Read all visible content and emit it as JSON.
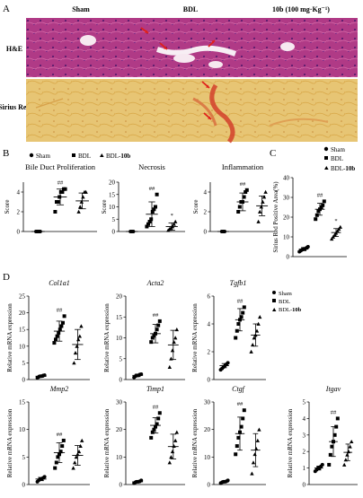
{
  "panel_labels": [
    "A",
    "B",
    "C",
    "D"
  ],
  "histology": {
    "columns": [
      "Sham",
      "BDL",
      "10b (100 mg·Kg⁻¹)"
    ],
    "rows": [
      "H&E",
      "Sirius Red"
    ]
  },
  "legend_labels": [
    "Sham",
    "BDL",
    "BDL-10b"
  ],
  "legend_bdl10b_parts": [
    "BDL-",
    "10b"
  ],
  "colors": {
    "he_fill": "#b03a86",
    "sirius_fill": "#e7c574",
    "arrow": "#e0201a",
    "ink": "#000000"
  },
  "chart_data": [
    {
      "type": "scatter",
      "title": "Bile Duct Proliferation",
      "ylabel": "Score",
      "ylim": [
        0,
        5
      ],
      "yticks": [
        0,
        2,
        4
      ],
      "annotation": "##",
      "annotation_group": 1,
      "groups": [
        "Sham",
        "BDL",
        "BDL-10b"
      ],
      "points": [
        [
          0,
          0,
          0,
          0
        ],
        [
          2,
          3,
          3,
          3.5,
          4,
          4,
          4.3,
          4.3
        ],
        [
          2,
          2.5,
          3,
          3.5,
          4,
          4
        ]
      ],
      "mean": [
        0,
        3.5,
        3.1
      ],
      "sd": [
        0,
        0.8,
        0.8
      ]
    },
    {
      "type": "scatter",
      "title": "Necrosis",
      "ylabel": "Score",
      "ylim": [
        0,
        20
      ],
      "yticks": [
        0,
        5,
        10,
        15,
        20
      ],
      "annotation": "##",
      "annotation_group": 1,
      "annotation2": "*",
      "annotation2_group": 2,
      "groups": [
        "Sham",
        "BDL",
        "BDL-10b"
      ],
      "points": [
        [
          0,
          0,
          0
        ],
        [
          2,
          3,
          4,
          5,
          8,
          9,
          10,
          15
        ],
        [
          0.5,
          1,
          1.5,
          2,
          3,
          4
        ]
      ],
      "mean": [
        0,
        7,
        2
      ],
      "sd": [
        0,
        5,
        1.5
      ]
    },
    {
      "type": "scatter",
      "title": "Inflammation",
      "ylabel": "Score",
      "ylim": [
        0,
        5
      ],
      "yticks": [
        0,
        2,
        4
      ],
      "annotation": "##",
      "annotation_group": 1,
      "groups": [
        "Sham",
        "BDL",
        "BDL-10b"
      ],
      "points": [
        [
          0,
          0,
          0
        ],
        [
          2,
          2.5,
          3,
          3,
          3.5,
          4,
          4.2
        ],
        [
          1,
          2,
          2.5,
          3,
          3.5,
          4
        ]
      ],
      "mean": [
        0,
        3,
        2.6
      ],
      "sd": [
        0,
        0.9,
        1.0
      ]
    },
    {
      "type": "scatter",
      "title": "",
      "ylabel": "Sirius Red Positive Area(%)",
      "ylim": [
        0,
        40
      ],
      "yticks": [
        0,
        10,
        20,
        30,
        40
      ],
      "annotation": "##",
      "annotation_group": 1,
      "annotation2": "*",
      "annotation2_group": 2,
      "groups": [
        "Sham",
        "BDL",
        "BDL-10b"
      ],
      "points": [
        [
          2.5,
          3,
          3.5,
          4,
          4,
          4.5,
          5
        ],
        [
          19,
          21,
          23,
          24,
          25,
          26,
          28
        ],
        [
          9,
          10,
          11,
          12,
          13,
          14,
          15
        ]
      ],
      "mean": [
        3.8,
        24,
        12.2
      ],
      "sd": [
        0.8,
        3,
        2
      ]
    },
    {
      "type": "scatter",
      "title": "Col1a1",
      "ylabel": "Relative mRNA expression",
      "ylim": [
        0,
        25
      ],
      "yticks": [
        0,
        5,
        10,
        15,
        20,
        25
      ],
      "annotation": "##",
      "annotation_group": 1,
      "groups": [
        "Sham",
        "BDL",
        "BDL-10b"
      ],
      "points": [
        [
          0.5,
          0.8,
          1,
          1,
          1.2,
          1.3
        ],
        [
          11,
          12,
          13,
          14,
          15,
          16,
          17,
          19
        ],
        [
          5,
          8,
          10,
          12,
          13,
          16
        ]
      ],
      "mean": [
        1,
        14.5,
        10.5
      ],
      "sd": [
        0.3,
        3,
        4.5
      ]
    },
    {
      "type": "scatter",
      "title": "Acta2",
      "ylabel": "Relative mRNA expression",
      "ylim": [
        0,
        20
      ],
      "yticks": [
        0,
        5,
        10,
        15,
        20
      ],
      "annotation": "##",
      "annotation_group": 1,
      "groups": [
        "Sham",
        "BDL",
        "BDL-10b"
      ],
      "points": [
        [
          0.5,
          0.8,
          1,
          1,
          1.2,
          1.3
        ],
        [
          9,
          10,
          10.5,
          11,
          12,
          13,
          14
        ],
        [
          3,
          5,
          7,
          9,
          10,
          12
        ]
      ],
      "mean": [
        1,
        11,
        8.3
      ],
      "sd": [
        0.3,
        2.2,
        3.5
      ]
    },
    {
      "type": "scatter",
      "title": "Tgfb1",
      "ylabel": "Relative mRNA expression",
      "ylim": [
        0,
        6
      ],
      "yticks": [
        0,
        2,
        4,
        6
      ],
      "annotation": "##",
      "annotation_group": 1,
      "groups": [
        "Sham",
        "BDL",
        "BDL-10b"
      ],
      "points": [
        [
          0.7,
          0.8,
          0.9,
          1,
          1.1,
          1.2
        ],
        [
          3,
          3.5,
          4,
          4.3,
          4.5,
          4.8,
          5.2
        ],
        [
          2,
          2.5,
          3,
          3.2,
          3.5,
          4,
          4.5
        ]
      ],
      "mean": [
        1,
        4.3,
        3.2
      ],
      "sd": [
        0.15,
        0.8,
        0.8
      ]
    },
    {
      "type": "scatter",
      "title": "Mmp2",
      "ylabel": "Relative mRNA expression",
      "ylim": [
        0,
        15
      ],
      "yticks": [
        0,
        5,
        10,
        15
      ],
      "annotation": "##",
      "annotation_group": 1,
      "groups": [
        "Sham",
        "BDL",
        "BDL-10b"
      ],
      "points": [
        [
          0.5,
          0.8,
          1,
          1,
          1.2,
          1.4
        ],
        [
          3,
          4,
          5,
          5.5,
          6,
          7,
          8
        ],
        [
          3,
          4,
          5,
          5.5,
          6,
          7,
          8
        ]
      ],
      "mean": [
        1,
        5.8,
        5.3
      ],
      "sd": [
        0.3,
        1.8,
        1.8
      ]
    },
    {
      "type": "scatter",
      "title": "Timp1",
      "ylabel": "Relative mRNA expression",
      "ylim": [
        0,
        30
      ],
      "yticks": [
        0,
        10,
        20,
        30
      ],
      "annotation": "##",
      "annotation_group": 1,
      "groups": [
        "Sham",
        "BDL",
        "BDL-10b"
      ],
      "points": [
        [
          0.5,
          0.8,
          1,
          1,
          1.2,
          1.5
        ],
        [
          17,
          19,
          20,
          21,
          22,
          24,
          26
        ],
        [
          8,
          10,
          12,
          14,
          16,
          19
        ]
      ],
      "mean": [
        1,
        21.5,
        13.8
      ],
      "sd": [
        0.4,
        2.8,
        4.5
      ]
    },
    {
      "type": "scatter",
      "title": "Ctgf",
      "ylabel": "Relative mRNA expression",
      "ylim": [
        0,
        30
      ],
      "yticks": [
        0,
        10,
        20,
        30
      ],
      "annotation": "##",
      "annotation_group": 1,
      "groups": [
        "Sham",
        "BDL",
        "BDL-10b"
      ],
      "points": [
        [
          0.5,
          0.8,
          1,
          1,
          1.2,
          1.5
        ],
        [
          11,
          14,
          17,
          19,
          21,
          24,
          27
        ],
        [
          4,
          8,
          11,
          13,
          16,
          20
        ]
      ],
      "mean": [
        1,
        18.5,
        12.5
      ],
      "sd": [
        0.4,
        6,
        6
      ]
    },
    {
      "type": "scatter",
      "title": "Itgav",
      "ylabel": "Relative mRNA expression",
      "ylim": [
        0,
        5
      ],
      "yticks": [
        0,
        1,
        2,
        3,
        4,
        5
      ],
      "annotation": "##",
      "annotation_group": 1,
      "groups": [
        "Sham",
        "BDL",
        "BDL-10b"
      ],
      "points": [
        [
          0.8,
          0.9,
          1,
          1,
          1.1,
          1.2
        ],
        [
          1.2,
          1.8,
          2.3,
          2.6,
          3,
          3.5,
          4
        ],
        [
          1.2,
          1.5,
          1.8,
          2,
          2.3,
          2.6
        ]
      ],
      "mean": [
        1,
        2.6,
        1.95
      ],
      "sd": [
        0.12,
        0.9,
        0.5
      ]
    }
  ]
}
